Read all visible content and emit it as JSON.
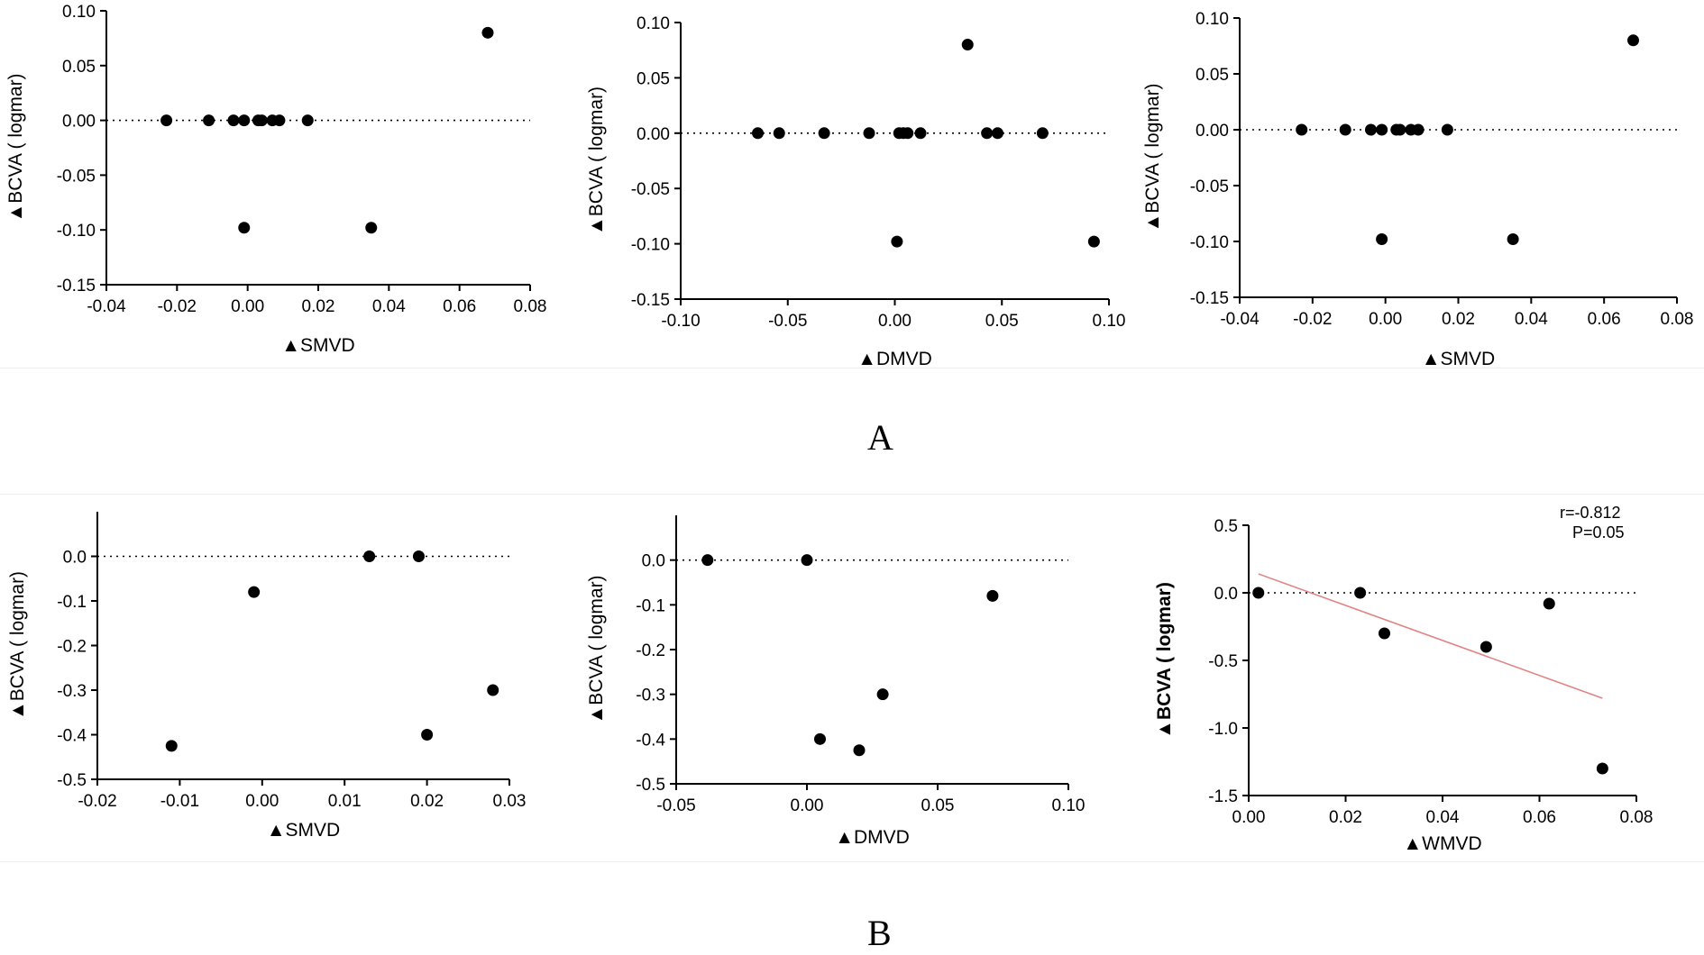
{
  "figure_labels": {
    "a": "A",
    "b": "B"
  },
  "colors": {
    "points": "#000000",
    "zero_line": "#000000",
    "fit_line": "#e08585",
    "axis": "#000000"
  },
  "chart_data": [
    {
      "type": "scatter",
      "id": "A1",
      "xlabel": "▲SMVD",
      "ylabel": "▲BCVA ( logmar)",
      "xlim": [
        -0.04,
        0.08
      ],
      "ylim": [
        -0.15,
        0.1
      ],
      "xticks": [
        -0.04,
        -0.02,
        0.0,
        0.02,
        0.04,
        0.06,
        0.08
      ],
      "xtick_labels": [
        "-0.04",
        "-0.02",
        "0.00",
        "0.02",
        "0.04",
        "0.06",
        "0.08"
      ],
      "yticks": [
        -0.15,
        -0.1,
        -0.05,
        0.0,
        0.05,
        0.1
      ],
      "ytick_labels": [
        "-0.15",
        "-0.10",
        "-0.05",
        "0.00",
        "0.05",
        "0.10"
      ],
      "zero_line": true,
      "points": [
        [
          -0.023,
          0.0
        ],
        [
          -0.011,
          0.0
        ],
        [
          -0.004,
          0.0
        ],
        [
          -0.001,
          0.0
        ],
        [
          0.003,
          0.0
        ],
        [
          0.004,
          0.0
        ],
        [
          0.007,
          0.0
        ],
        [
          0.009,
          0.0
        ],
        [
          0.017,
          0.0
        ],
        [
          -0.001,
          -0.098
        ],
        [
          0.035,
          -0.098
        ],
        [
          0.068,
          0.08
        ]
      ]
    },
    {
      "type": "scatter",
      "id": "A2",
      "xlabel": "▲DMVD",
      "ylabel": "▲BCVA ( logmar)",
      "xlim": [
        -0.1,
        0.1
      ],
      "ylim": [
        -0.15,
        0.1
      ],
      "xticks": [
        -0.1,
        -0.05,
        0.0,
        0.05,
        0.1
      ],
      "xtick_labels": [
        "-0.10",
        "-0.05",
        "0.00",
        "0.05",
        "0.10"
      ],
      "yticks": [
        -0.15,
        -0.1,
        -0.05,
        0.0,
        0.05,
        0.1
      ],
      "ytick_labels": [
        "-0.15",
        "-0.10",
        "-0.05",
        "0.00",
        "0.05",
        "0.10"
      ],
      "zero_line": true,
      "points": [
        [
          -0.064,
          0.0
        ],
        [
          -0.054,
          0.0
        ],
        [
          -0.033,
          0.0
        ],
        [
          -0.012,
          0.0
        ],
        [
          0.002,
          0.0
        ],
        [
          0.004,
          0.0
        ],
        [
          0.006,
          0.0
        ],
        [
          0.012,
          0.0
        ],
        [
          0.043,
          0.0
        ],
        [
          0.048,
          0.0
        ],
        [
          0.069,
          0.0
        ],
        [
          0.001,
          -0.098
        ],
        [
          0.093,
          -0.098
        ],
        [
          0.034,
          0.08
        ]
      ]
    },
    {
      "type": "scatter",
      "id": "A3",
      "xlabel": "▲SMVD",
      "ylabel": "▲BCVA ( logmar)",
      "xlim": [
        -0.04,
        0.08
      ],
      "ylim": [
        -0.15,
        0.1
      ],
      "xticks": [
        -0.04,
        -0.02,
        0.0,
        0.02,
        0.04,
        0.06,
        0.08
      ],
      "xtick_labels": [
        "-0.04",
        "-0.02",
        "0.00",
        "0.02",
        "0.04",
        "0.06",
        "0.08"
      ],
      "yticks": [
        -0.15,
        -0.1,
        -0.05,
        0.0,
        0.05,
        0.1
      ],
      "ytick_labels": [
        "-0.15",
        "-0.10",
        "-0.05",
        "0.00",
        "0.05",
        "0.10"
      ],
      "zero_line": true,
      "points": [
        [
          -0.023,
          0.0
        ],
        [
          -0.011,
          0.0
        ],
        [
          -0.004,
          0.0
        ],
        [
          -0.001,
          0.0
        ],
        [
          0.003,
          0.0
        ],
        [
          0.004,
          0.0
        ],
        [
          0.007,
          0.0
        ],
        [
          0.009,
          0.0
        ],
        [
          0.017,
          0.0
        ],
        [
          -0.001,
          -0.098
        ],
        [
          0.035,
          -0.098
        ],
        [
          0.068,
          0.08
        ]
      ]
    },
    {
      "type": "scatter",
      "id": "B1",
      "xlabel": "▲SMVD",
      "ylabel": "▲BCVA ( logmar)",
      "xlim": [
        -0.02,
        0.03
      ],
      "ylim": [
        -0.5,
        0.1
      ],
      "xticks": [
        -0.02,
        -0.01,
        0.0,
        0.01,
        0.02,
        0.03
      ],
      "xtick_labels": [
        "-0.02",
        "-0.01",
        "0.00",
        "0.01",
        "0.02",
        "0.03"
      ],
      "yticks": [
        -0.5,
        -0.4,
        -0.3,
        -0.2,
        -0.1,
        0.0
      ],
      "ytick_labels": [
        "-0.5",
        "-0.4",
        "-0.3",
        "-0.2",
        "-0.1",
        "0.0"
      ],
      "zero_line": true,
      "points": [
        [
          -0.011,
          -0.425
        ],
        [
          -0.001,
          -0.08
        ],
        [
          0.013,
          0.0
        ],
        [
          0.019,
          0.0
        ],
        [
          0.02,
          -0.4
        ],
        [
          0.028,
          -0.3
        ]
      ]
    },
    {
      "type": "scatter",
      "id": "B2",
      "xlabel": "▲DMVD",
      "ylabel": "▲BCVA ( logmar)",
      "xlim": [
        -0.05,
        0.1
      ],
      "ylim": [
        -0.5,
        0.1
      ],
      "xticks": [
        -0.05,
        0.0,
        0.05,
        0.1
      ],
      "xtick_labels": [
        "-0.05",
        "0.00",
        "0.05",
        "0.10"
      ],
      "yticks": [
        -0.5,
        -0.4,
        -0.3,
        -0.2,
        -0.1,
        0.0
      ],
      "ytick_labels": [
        "-0.5",
        "-0.4",
        "-0.3",
        "-0.2",
        "-0.1",
        "0.0"
      ],
      "zero_line": true,
      "points": [
        [
          -0.038,
          0.0
        ],
        [
          0.0,
          0.0
        ],
        [
          0.005,
          -0.4
        ],
        [
          0.02,
          -0.425
        ],
        [
          0.029,
          -0.3
        ],
        [
          0.071,
          -0.08
        ]
      ]
    },
    {
      "type": "scatter",
      "id": "B3",
      "xlabel": "▲WMVD",
      "ylabel": "▲BCVA ( logmar)",
      "ylabel_bold": true,
      "xlim": [
        0.0,
        0.08
      ],
      "ylim": [
        -1.5,
        0.5
      ],
      "xticks": [
        0.0,
        0.02,
        0.04,
        0.06,
        0.08
      ],
      "xtick_labels": [
        "0.00",
        "0.02",
        "0.04",
        "0.06",
        "0.08"
      ],
      "yticks": [
        -1.5,
        -1.0,
        -0.5,
        0.0,
        0.5
      ],
      "ytick_labels": [
        "-1.5",
        "-1.0",
        "-0.5",
        "0.0",
        "0.5"
      ],
      "zero_line": true,
      "points": [
        [
          0.002,
          0.0
        ],
        [
          0.023,
          0.0
        ],
        [
          0.028,
          -0.3
        ],
        [
          0.049,
          -0.4
        ],
        [
          0.062,
          -0.08
        ],
        [
          0.073,
          -1.3
        ]
      ],
      "fit_line": [
        [
          0.002,
          0.14
        ],
        [
          0.073,
          -0.78
        ]
      ],
      "annotations": [
        "r=-0.812",
        "P=0.05"
      ]
    }
  ]
}
